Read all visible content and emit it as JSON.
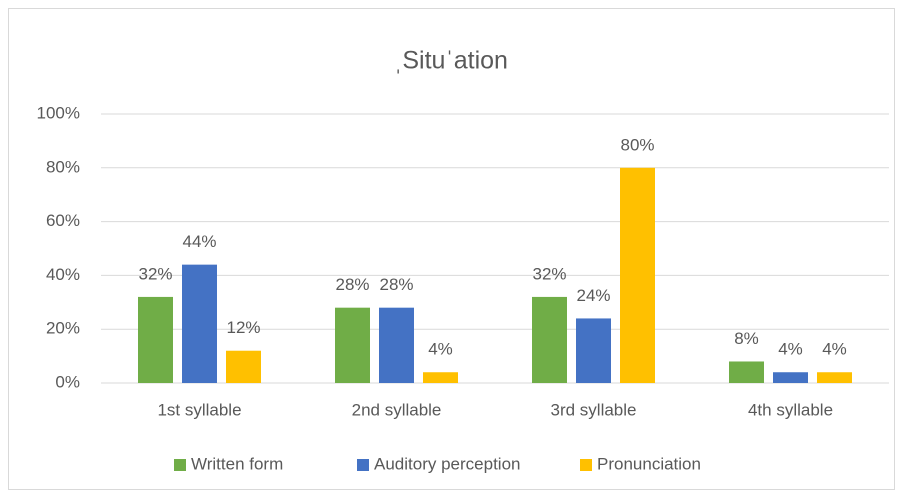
{
  "chart_data": {
    "type": "bar",
    "title": "ˌSituˈation",
    "categories": [
      "1st syllable",
      "2nd syllable",
      "3rd syllable",
      "4th syllable"
    ],
    "series": [
      {
        "name": "Written form",
        "color": "#70ad47",
        "values": [
          32,
          28,
          32,
          8
        ],
        "value_labels": [
          "32%",
          "28%",
          "32%",
          "8%"
        ]
      },
      {
        "name": "Auditory perception",
        "color": "#4472c4",
        "values": [
          44,
          28,
          24,
          4
        ],
        "value_labels": [
          "44%",
          "28%",
          "24%",
          "4%"
        ]
      },
      {
        "name": "Pronunciation",
        "color": "#ffc000",
        "values": [
          12,
          4,
          80,
          4
        ],
        "value_labels": [
          "12%",
          "4%",
          "80%",
          "4%"
        ]
      }
    ],
    "ylim": [
      0,
      100
    ],
    "yticks": [
      {
        "value": 0,
        "label": "0%"
      },
      {
        "value": 20,
        "label": "20%"
      },
      {
        "value": 40,
        "label": "40%"
      },
      {
        "value": 60,
        "label": "60%"
      },
      {
        "value": 80,
        "label": "80%"
      },
      {
        "value": 100,
        "label": "100%"
      }
    ],
    "grid": true,
    "legend": "bottom"
  }
}
